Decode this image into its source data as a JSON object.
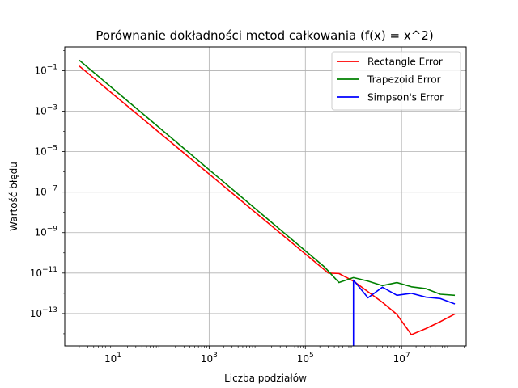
{
  "chart_data": {
    "type": "line",
    "title": "Porównanie dokładności metod całkowania (f(x) = x^2)",
    "xlabel": "Liczba podziałów",
    "ylabel": "Wartość błędu",
    "xscale": "log",
    "yscale": "log",
    "xlim": [
      1.0,
      220000000.0
    ],
    "ylim": [
      2.5e-15,
      1.5
    ],
    "grid": true,
    "legend_position": "top-right",
    "x_ticks": [
      {
        "value": 10,
        "label": "10",
        "exp": "1"
      },
      {
        "value": 1000,
        "label": "10",
        "exp": "3"
      },
      {
        "value": 100000,
        "label": "10",
        "exp": "5"
      },
      {
        "value": 10000000,
        "label": "10",
        "exp": "7"
      }
    ],
    "y_ticks": [
      {
        "value": 0.1,
        "label": "10",
        "exp": "−1"
      },
      {
        "value": 0.001,
        "label": "10",
        "exp": "−3"
      },
      {
        "value": 1e-05,
        "label": "10",
        "exp": "−5"
      },
      {
        "value": 1e-07,
        "label": "10",
        "exp": "−7"
      },
      {
        "value": 1e-09,
        "label": "10",
        "exp": "−9"
      },
      {
        "value": 1e-11,
        "label": "10",
        "exp": "−11"
      },
      {
        "value": 1e-13,
        "label": "10",
        "exp": "−13"
      }
    ],
    "series": [
      {
        "name": "Rectangle Error",
        "color": "#ff0000",
        "points": [
          [
            2,
            0.17
          ],
          [
            300000,
            1e-11
          ],
          [
            500000,
            9.5e-12
          ],
          [
            1000000,
            4e-12
          ],
          [
            2000000,
            1.2e-12
          ],
          [
            4000000,
            3.6e-13
          ],
          [
            8000000,
            9e-14
          ],
          [
            16000000,
            9e-15
          ],
          [
            32000000,
            1.8e-14
          ],
          [
            64000000,
            4e-14
          ],
          [
            128000000,
            9.5e-14
          ]
        ]
      },
      {
        "name": "Trapezoid Error",
        "color": "#008000",
        "points": [
          [
            2,
            0.33
          ],
          [
            250000,
            2e-11
          ],
          [
            500000,
            3.4e-12
          ],
          [
            1000000,
            6e-12
          ],
          [
            2000000,
            4e-12
          ],
          [
            4000000,
            2.4e-12
          ],
          [
            8000000,
            3.4e-12
          ],
          [
            16000000,
            2.1e-12
          ],
          [
            32000000,
            1.7e-12
          ],
          [
            64000000,
            9e-13
          ],
          [
            128000000,
            8e-13
          ]
        ]
      },
      {
        "name": "Simpson's Error",
        "color": "#0000ff",
        "points": [
          [
            1000000,
            4.5e-12
          ],
          [
            2000000,
            6e-13
          ],
          [
            4000000,
            2e-12
          ],
          [
            8000000,
            8e-13
          ],
          [
            16000000,
            1e-12
          ],
          [
            32000000,
            6.5e-13
          ],
          [
            64000000,
            5.5e-13
          ],
          [
            128000000,
            3e-13
          ]
        ],
        "drop_to_bottom_at_x": 1000000
      }
    ]
  }
}
